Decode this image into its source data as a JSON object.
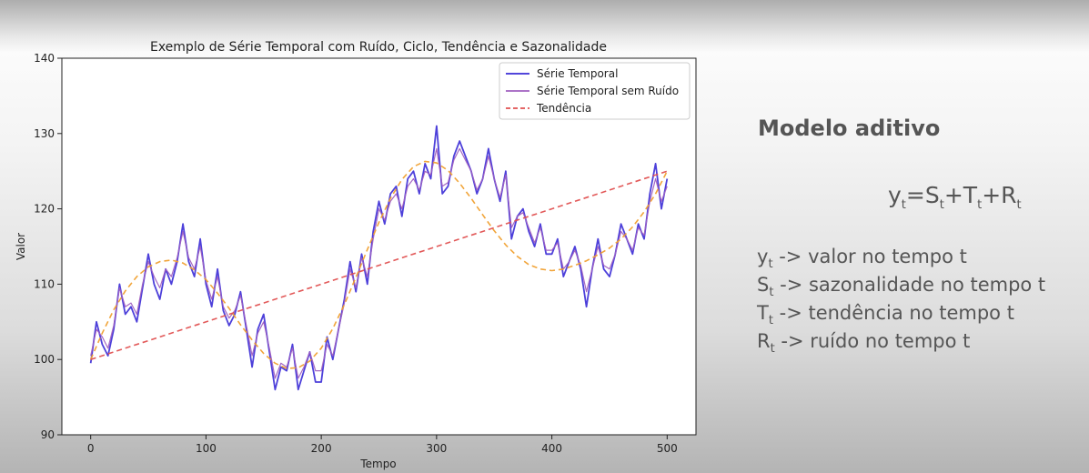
{
  "chart_data": {
    "type": "line",
    "title": "Exemplo de Série Temporal com Ruído, Ciclo, Tendência e Sazonalidade",
    "xlabel": "Tempo",
    "ylabel": "Valor",
    "xlim": [
      -25,
      525
    ],
    "ylim": [
      90,
      140
    ],
    "xticks": [
      0,
      100,
      200,
      300,
      400,
      500
    ],
    "yticks": [
      90,
      100,
      110,
      120,
      130,
      140
    ],
    "grid": false,
    "legend_position": "top-right",
    "series": [
      {
        "name": "Série Temporal",
        "color": "#3a2bd6",
        "style": "solid",
        "x": [
          0,
          5,
          10,
          15,
          20,
          25,
          30,
          35,
          40,
          45,
          50,
          55,
          60,
          65,
          70,
          75,
          80,
          85,
          90,
          95,
          100,
          105,
          110,
          115,
          120,
          125,
          130,
          135,
          140,
          145,
          150,
          155,
          160,
          165,
          170,
          175,
          180,
          185,
          190,
          195,
          200,
          205,
          210,
          215,
          220,
          225,
          230,
          235,
          240,
          245,
          250,
          255,
          260,
          265,
          270,
          275,
          280,
          285,
          290,
          295,
          300,
          305,
          310,
          315,
          320,
          325,
          330,
          335,
          340,
          345,
          350,
          355,
          360,
          365,
          370,
          375,
          380,
          385,
          390,
          395,
          400,
          405,
          410,
          415,
          420,
          425,
          430,
          435,
          440,
          445,
          450,
          455,
          460,
          465,
          470,
          475,
          480,
          485,
          490,
          495,
          500
        ],
        "values": [
          99.5,
          105,
          102,
          100.5,
          104,
          110,
          106,
          107,
          105,
          109.5,
          114,
          110,
          108,
          112,
          110,
          113,
          118,
          113,
          111,
          116,
          110,
          107,
          112,
          106.5,
          104.5,
          106,
          109,
          104,
          99,
          104,
          106,
          101,
          96,
          99,
          98.5,
          102,
          96,
          98.5,
          101,
          97,
          97,
          103,
          100,
          104,
          108,
          113,
          109,
          114,
          110,
          117,
          121,
          118,
          122,
          123,
          119,
          124,
          125,
          122,
          126,
          124,
          131,
          122,
          123,
          127,
          129,
          127,
          125,
          122,
          124,
          128,
          124,
          121,
          125,
          116,
          119,
          120,
          117,
          115,
          118,
          114,
          114,
          116,
          111,
          113,
          115,
          112,
          107,
          112,
          116,
          112,
          111,
          114,
          118,
          116,
          114,
          118,
          116,
          122,
          126,
          120,
          124
        ]
      },
      {
        "name": "Série Temporal sem Ruído",
        "color": "#a060c0",
        "style": "solid",
        "x": [
          0,
          5,
          10,
          15,
          20,
          25,
          30,
          35,
          40,
          45,
          50,
          55,
          60,
          65,
          70,
          75,
          80,
          85,
          90,
          95,
          100,
          105,
          110,
          115,
          120,
          125,
          130,
          135,
          140,
          145,
          150,
          155,
          160,
          165,
          170,
          175,
          180,
          185,
          190,
          195,
          200,
          205,
          210,
          215,
          220,
          225,
          230,
          235,
          240,
          245,
          250,
          255,
          260,
          265,
          270,
          275,
          280,
          285,
          290,
          295,
          300,
          305,
          310,
          315,
          320,
          325,
          330,
          335,
          340,
          345,
          350,
          355,
          360,
          365,
          370,
          375,
          380,
          385,
          390,
          395,
          400,
          405,
          410,
          415,
          420,
          425,
          430,
          435,
          440,
          445,
          450,
          455,
          460,
          465,
          470,
          475,
          480,
          485,
          490,
          495,
          500
        ],
        "values": [
          100.5,
          104,
          103,
          101.5,
          104.5,
          109.5,
          107,
          107.5,
          106,
          110,
          113,
          111,
          109.5,
          112,
          111,
          113.5,
          117,
          113.5,
          112,
          115,
          110.5,
          108,
          111,
          107,
          105.5,
          106.5,
          108.5,
          104.5,
          100.5,
          103.5,
          105,
          101.5,
          97.5,
          99.5,
          99,
          101.5,
          97.5,
          99,
          101,
          98.5,
          98.5,
          102,
          100.5,
          104,
          107.5,
          112,
          109.5,
          113.5,
          111,
          116,
          120,
          118.5,
          121,
          122,
          120,
          123,
          124,
          122.5,
          125,
          124.5,
          128,
          123,
          123.5,
          126.5,
          128,
          126.5,
          125,
          122.5,
          124,
          127,
          124,
          121.5,
          124.5,
          117.5,
          119,
          119.5,
          117.5,
          115.5,
          117.5,
          114.5,
          114.5,
          115.5,
          112,
          113,
          114.5,
          112.5,
          109,
          112,
          115,
          112.5,
          112,
          114,
          117,
          116,
          114.5,
          117.5,
          116.5,
          121,
          124,
          121,
          123
        ]
      },
      {
        "name": "Tendência",
        "color": "#e05050",
        "style": "dashed",
        "x": [
          0,
          500
        ],
        "values": [
          100,
          125
        ]
      },
      {
        "name": "",
        "color": "#f0a030",
        "style": "dashed",
        "x": [
          0,
          10,
          20,
          30,
          40,
          50,
          60,
          70,
          80,
          90,
          100,
          110,
          120,
          130,
          140,
          150,
          160,
          170,
          180,
          190,
          200,
          210,
          220,
          230,
          240,
          250,
          260,
          270,
          280,
          290,
          300,
          310,
          320,
          330,
          340,
          350,
          360,
          370,
          380,
          390,
          400,
          410,
          420,
          430,
          440,
          450,
          460,
          470,
          480,
          490,
          500
        ],
        "values": [
          100.0,
          103.5,
          106.6,
          109.1,
          111.0,
          112.3,
          113.0,
          113.2,
          112.8,
          111.9,
          110.6,
          108.8,
          106.8,
          104.6,
          102.6,
          100.8,
          99.5,
          98.8,
          98.9,
          99.8,
          101.5,
          104.1,
          107.3,
          110.9,
          114.6,
          118.2,
          121.4,
          123.9,
          125.6,
          126.3,
          126.1,
          125.1,
          123.4,
          121.4,
          119.2,
          117.1,
          115.2,
          113.7,
          112.6,
          112.0,
          111.8,
          112.0,
          112.5,
          113.1,
          113.9,
          114.8,
          116.0,
          117.6,
          119.6,
          122.0,
          125.0
        ]
      }
    ]
  },
  "panel": {
    "title": "Modelo aditivo",
    "formula": {
      "y": "y",
      "y_sub": "t",
      "eq": "=",
      "s": "S",
      "s_sub": "t",
      "plus1": "+",
      "t": "T",
      "t_sub": "t",
      "plus2": "+",
      "r": "R",
      "r_sub": "t"
    },
    "definitions": [
      {
        "sym": "y",
        "sub": "t",
        "text": " -> valor no tempo t"
      },
      {
        "sym": "S",
        "sub": "t",
        "text": " -> sazonalidade no tempo t"
      },
      {
        "sym": "T",
        "sub": "t",
        "text": " -> tendência no tempo t"
      },
      {
        "sym": "R",
        "sub": "t",
        "text": " -> ruído no tempo t"
      }
    ]
  }
}
